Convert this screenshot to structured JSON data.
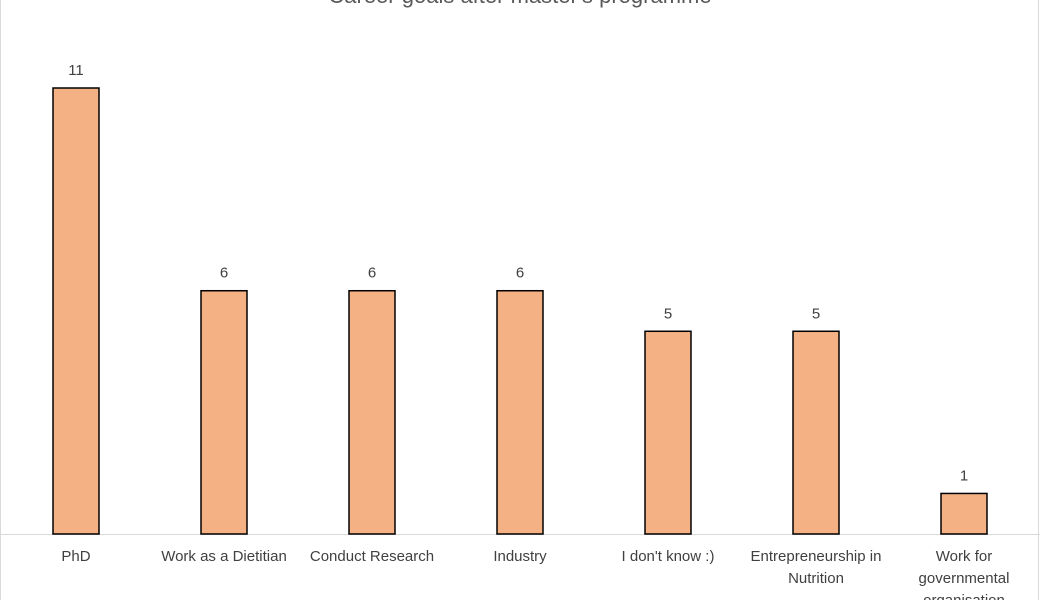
{
  "chart_data": {
    "type": "bar",
    "title": "Career goals after master's programme",
    "categories": [
      "PhD",
      "Work as a Dietitian",
      "Conduct Research",
      "Industry",
      "I don't know :)",
      "Entrepreneurship in Nutrition",
      "Work for governmental organisation"
    ],
    "values": [
      11,
      6,
      6,
      6,
      5,
      5,
      1
    ],
    "color": "#f4b183"
  }
}
